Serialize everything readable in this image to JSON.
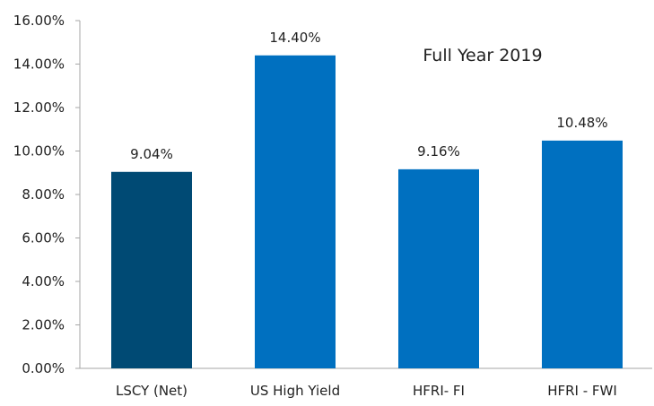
{
  "chart_data": {
    "type": "bar",
    "title": "Full Year 2019",
    "categories": [
      "LSCY (Net)",
      "US High Yield",
      "HFRI- FI",
      "HFRI - FWI"
    ],
    "values": [
      9.04,
      14.4,
      9.16,
      10.48
    ],
    "data_labels": [
      "9.04%",
      "14.40%",
      "9.16%",
      "10.48%"
    ],
    "xlabel": "",
    "ylabel": "",
    "ylim": [
      0,
      16
    ],
    "yticks": [
      0,
      2,
      4,
      6,
      8,
      10,
      12,
      14,
      16
    ],
    "ytick_labels": [
      "0.00%",
      "2.00%",
      "4.00%",
      "6.00%",
      "8.00%",
      "10.00%",
      "12.00%",
      "14.00%",
      "16.00%"
    ],
    "grid": false,
    "legend": "none",
    "bar_colors": [
      "#004a74",
      "#0070c0",
      "#0070c0",
      "#0070c0"
    ],
    "axis_color": "#a6a6a6"
  }
}
